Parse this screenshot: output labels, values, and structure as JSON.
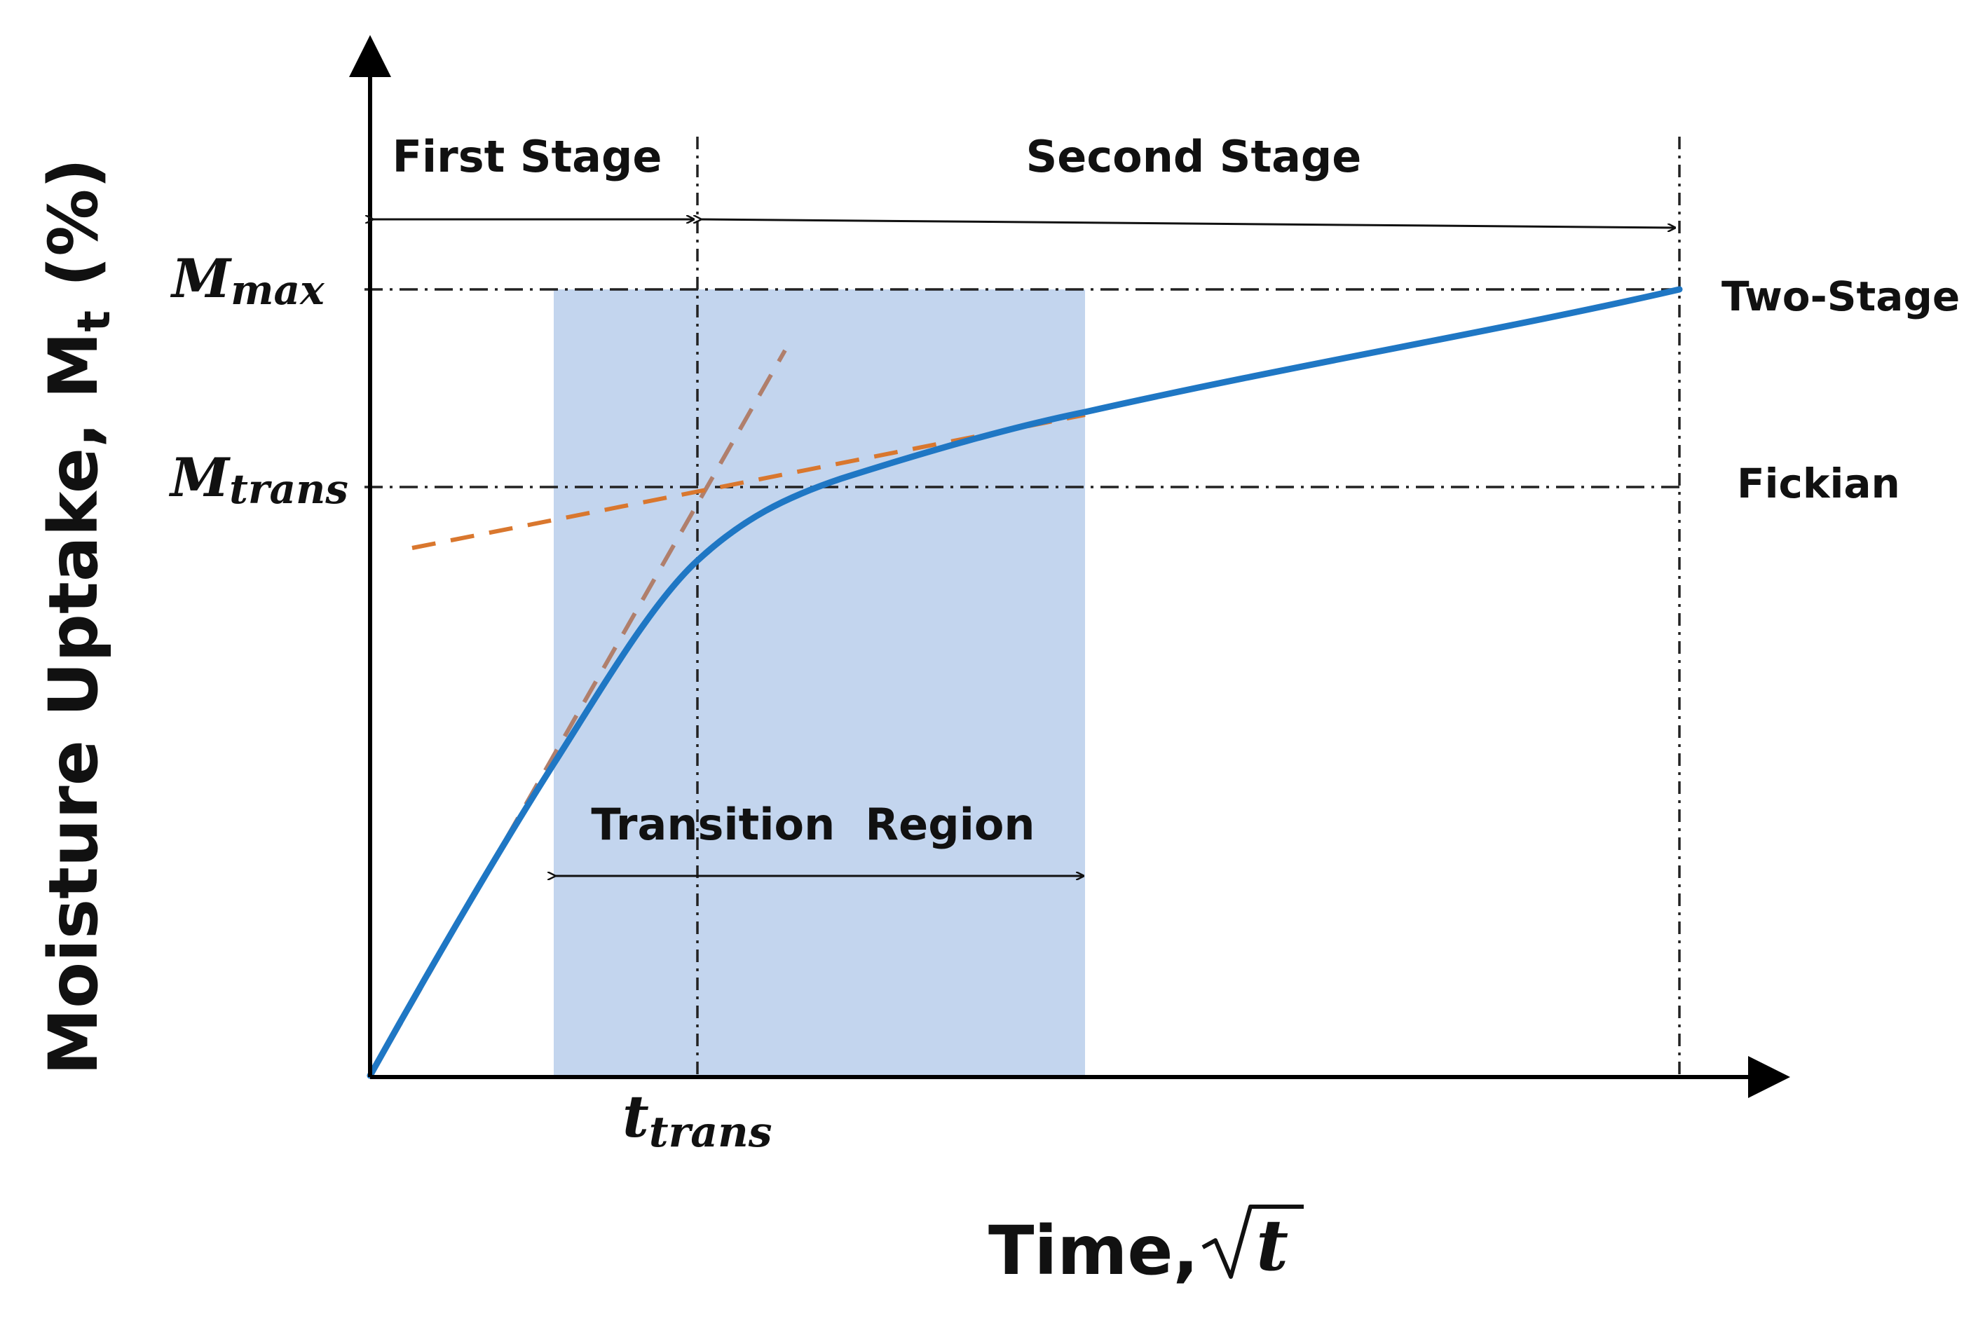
{
  "labels": {
    "y_axis": "Moisture Uptake, M",
    "y_axis_sub": "t",
    "y_axis_unit": " (%)",
    "x_axis": "Time, ",
    "x_axis_symbol": "t",
    "first_stage": "First Stage",
    "second_stage": "Second Stage",
    "transition_region": "Transition  Region",
    "two_stage": "Two-Stage",
    "fickian": "Fickian",
    "m_max_main": "M",
    "m_max_sub": "max",
    "m_trans_main": "M",
    "m_trans_sub": "trans",
    "t_trans_main": "t",
    "t_trans_sub": "trans"
  },
  "colors": {
    "curve": "#1f77c4",
    "transition_fill": "#c3d5ee",
    "fit_upper": "#b07f6c",
    "fit_lower": "#d9772e",
    "axis": "#000000"
  }
}
